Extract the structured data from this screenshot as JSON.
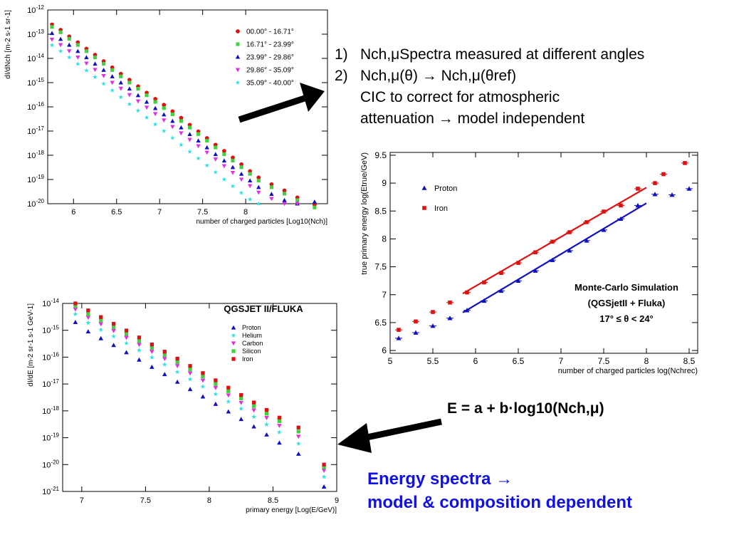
{
  "bullets": {
    "item1_num": "1)",
    "item1_text": "Nch,μSpectra measured at different angles",
    "item2_num": "2)",
    "item2_line1": "Nch,μ(θ) → Nch,μ(θref)",
    "item2_line2": "CIC to correct for atmospheric",
    "item2_line3": "attenuation → model independent"
  },
  "formula": "E = a + b·log10(Nch,μ)",
  "energy_spectra": {
    "line1": "Energy spectra →",
    "line2": "model & composition dependent"
  },
  "colors": {
    "red": "#e01010",
    "green": "#40d040",
    "blue": "#1010c0",
    "magenta": "#e030e0",
    "cyan": "#30e0e0",
    "accent_text": "#1010e8",
    "arrow": "#000000"
  },
  "chart_data": [
    {
      "type": "scatter",
      "title": "",
      "xlabel": "number of charged particles [Log10(Nch)]",
      "ylabel": "dI/dNch [m-2 s-1 sr-1]",
      "xlim": [
        5.7,
        8.95
      ],
      "ylim": [
        1e-20,
        1e-12
      ],
      "log_y": true,
      "x_ticks": [
        6,
        6.5,
        7,
        7.5,
        8
      ],
      "y_ticks": [
        "10-12",
        "10-13",
        "10-14",
        "10-15",
        "10-16",
        "10-17",
        "10-18",
        "10-19",
        "10-20"
      ],
      "legend_position": "top-right",
      "x": [
        5.75,
        5.85,
        5.95,
        6.05,
        6.15,
        6.25,
        6.35,
        6.45,
        6.55,
        6.65,
        6.75,
        6.85,
        6.95,
        7.05,
        7.15,
        7.25,
        7.35,
        7.45,
        7.55,
        7.65,
        7.75,
        7.85,
        7.95,
        8.05,
        8.15,
        8.3,
        8.45,
        8.6,
        8.8
      ],
      "series": [
        {
          "name": "00.00° - 16.71°",
          "marker": "circle",
          "color": "#e01010",
          "y": [
            2.5e-13,
            1.5e-13,
            8e-14,
            4.6e-14,
            2.5e-14,
            1.4e-14,
            7.6e-15,
            4.2e-15,
            2.3e-15,
            1.3e-15,
            7e-16,
            3.8e-16,
            2.1e-16,
            1.2e-16,
            6.5e-17,
            3.5e-17,
            1.8e-17,
            9.6e-18,
            5.1e-18,
            2.7e-18,
            1.5e-18,
            8e-19,
            4.2e-19,
            2.2e-19,
            1.2e-19,
            6.3e-20,
            3.5e-20,
            1.8e-20,
            9e-21
          ]
        },
        {
          "name": "16.71° - 23.99°",
          "marker": "square",
          "color": "#40d040",
          "y": [
            2e-13,
            1.2e-13,
            6.5e-14,
            3.6e-14,
            2e-14,
            1.1e-14,
            6e-15,
            3.3e-15,
            1.8e-15,
            1e-15,
            5.6e-16,
            3e-16,
            1.6e-16,
            8.9e-17,
            4.9e-17,
            2.6e-17,
            1.4e-17,
            7.5e-18,
            4e-18,
            2.1e-18,
            1.1e-18,
            6e-19,
            3.2e-19,
            1.7e-19,
            9e-20,
            4.8e-20,
            2.6e-20,
            1.4e-20,
            7e-21
          ]
        },
        {
          "name": "23.99° - 29.86°",
          "marker": "triangle",
          "color": "#1010c0",
          "y": [
            1.1e-13,
            6.3e-14,
            3.6e-14,
            2e-14,
            1.1e-14,
            6e-15,
            3.3e-15,
            1.8e-15,
            1e-15,
            5.6e-16,
            3e-16,
            1.6e-16,
            8.8e-17,
            4.8e-17,
            2.6e-17,
            1.4e-17,
            7.4e-18,
            4e-18,
            2.1e-18,
            1.1e-18,
            6e-19,
            3.2e-19,
            1.7e-19,
            9e-20,
            4.8e-20,
            2.5e-20,
            1.4e-20,
            1e-20,
            1.2e-20
          ]
        },
        {
          "name": "29.86° - 35.09°",
          "marker": "triangle-down",
          "color": "#e030e0",
          "y": [
            6e-14,
            3.6e-14,
            2e-14,
            1.1e-14,
            6.2e-15,
            3.4e-15,
            1.9e-15,
            1e-15,
            5.7e-16,
            3.1e-16,
            1.7e-16,
            9.4e-17,
            5.1e-17,
            2.8e-17,
            1.5e-17,
            8.2e-18,
            4.4e-18,
            2.4e-18,
            1.3e-18,
            6.8e-19,
            3.6e-19,
            1.9e-19,
            1e-19,
            5.4e-20,
            2.9e-20,
            1.6e-20,
            1e-20,
            1e-20
          ]
        },
        {
          "name": "35.09° - 40.00°",
          "marker": "star",
          "color": "#30e0e0",
          "y": [
            3.5e-14,
            2e-14,
            1.1e-14,
            5.9e-15,
            3.2e-15,
            1.7e-15,
            9e-16,
            4.8e-16,
            2.5e-16,
            1.3e-16,
            7e-17,
            3.6e-17,
            1.9e-17,
            1e-17,
            5.2e-18,
            2.7e-18,
            1.4e-18,
            7.5e-19,
            3.8e-19,
            2e-19,
            1e-19,
            5.3e-20,
            2.8e-20,
            1.5e-20,
            1e-20
          ]
        }
      ]
    },
    {
      "type": "scatter",
      "title": "Monte-Carlo Simulation",
      "annotation": [
        "Monte-Carlo Simulation",
        "(QGSjetII + Fluka)",
        "17° ≤ θ < 24°"
      ],
      "xlabel": "number of charged particles log(Nchrec)",
      "ylabel": "true primary energy log(Etrue/GeV)",
      "xlim": [
        5,
        8.6
      ],
      "ylim": [
        5.95,
        9.55
      ],
      "x_ticks": [
        5,
        5.5,
        6,
        6.5,
        7,
        7.5,
        8,
        8.5
      ],
      "y_ticks": [
        6,
        6.5,
        7,
        7.5,
        8,
        8.5,
        9,
        9.5
      ],
      "legend_position": "top-left",
      "series": [
        {
          "name": "Proton",
          "marker": "triangle",
          "color": "#1010c0",
          "x": [
            5.1,
            5.3,
            5.5,
            5.7,
            5.9,
            6.1,
            6.3,
            6.5,
            6.7,
            6.9,
            7.1,
            7.3,
            7.5,
            7.7,
            7.9,
            8.1,
            8.3,
            8.5
          ],
          "y": [
            6.22,
            6.32,
            6.44,
            6.58,
            6.72,
            6.89,
            7.07,
            7.25,
            7.43,
            7.62,
            7.79,
            7.97,
            8.16,
            8.36,
            8.6,
            8.8,
            8.79,
            8.9
          ],
          "fit": {
            "x": [
              5.85,
              8.0
            ],
            "y": [
              6.68,
              8.64
            ]
          }
        },
        {
          "name": "Iron",
          "marker": "square",
          "color": "#e01010",
          "x": [
            5.1,
            5.3,
            5.5,
            5.7,
            5.9,
            6.1,
            6.3,
            6.5,
            6.7,
            6.9,
            7.1,
            7.3,
            7.5,
            7.7,
            7.9,
            8.1,
            8.2,
            8.45
          ],
          "y": [
            6.37,
            6.52,
            6.69,
            6.86,
            7.04,
            7.22,
            7.39,
            7.57,
            7.76,
            7.95,
            8.12,
            8.3,
            8.49,
            8.6,
            8.9,
            9.0,
            9.16,
            9.36
          ],
          "fit": {
            "x": [
              5.85,
              8.0
            ],
            "y": [
              7.02,
              8.92
            ]
          }
        }
      ]
    },
    {
      "type": "scatter",
      "title": "QGSJET II/FLUKA",
      "xlabel": "primary energy [Log(E/GeV)]",
      "ylabel": "dI/dE [m-2 sr-1 s-1 GeV-1]",
      "xlim": [
        6.85,
        9
      ],
      "ylim": [
        1e-21,
        1e-14
      ],
      "log_y": true,
      "x_ticks": [
        7,
        7.5,
        8,
        8.5,
        9
      ],
      "y_ticks": [
        "10-14",
        "10-15",
        "10-16",
        "10-17",
        "10-18",
        "10-19",
        "10-20",
        "10-21"
      ],
      "legend_position": "top-center",
      "x": [
        6.95,
        7.05,
        7.15,
        7.25,
        7.35,
        7.45,
        7.55,
        7.65,
        7.75,
        7.85,
        7.95,
        8.05,
        8.15,
        8.25,
        8.35,
        8.45,
        8.55,
        8.7,
        8.9
      ],
      "series": [
        {
          "name": "Proton",
          "marker": "triangle",
          "color": "#1010c0",
          "y": [
            2e-15,
            9e-16,
            5e-16,
            2.8e-16,
            1.5e-16,
            8e-17,
            4.3e-17,
            2.3e-17,
            1.2e-17,
            6.4e-18,
            3.4e-18,
            1.8e-18,
            9.4e-19,
            4.9e-19,
            2.6e-19,
            1.3e-19,
            6.5e-20,
            2.5e-20,
            1.5e-21
          ]
        },
        {
          "name": "Helium",
          "marker": "star",
          "color": "#30e0e0",
          "y": [
            4e-15,
            1.9e-15,
            1.05e-15,
            5.9e-16,
            3.3e-16,
            1.8e-16,
            9.8e-17,
            5.3e-17,
            2.8e-17,
            1.5e-17,
            8e-18,
            4.2e-18,
            2.2e-18,
            1.2e-18,
            6e-19,
            3.1e-19,
            1.6e-19,
            6e-20,
            3.5e-21
          ]
        },
        {
          "name": "Carbon",
          "marker": "triangle-down",
          "color": "#e030e0",
          "y": [
            6e-15,
            3e-15,
            1.7e-15,
            9.5e-16,
            5.3e-16,
            2.9e-16,
            1.6e-16,
            8.7e-17,
            4.7e-17,
            2.5e-17,
            1.35e-17,
            7.2e-18,
            3.8e-18,
            2e-18,
            1.05e-18,
            5.5e-19,
            2.8e-19,
            1.1e-19,
            6e-21
          ]
        },
        {
          "name": "Silicon",
          "marker": "square",
          "color": "#40d040",
          "y": [
            8e-15,
            4e-15,
            2.3e-15,
            1.3e-15,
            7.3e-16,
            4e-16,
            2.2e-16,
            1.2e-16,
            6.5e-17,
            3.5e-17,
            1.9e-17,
            1e-17,
            5.4e-18,
            2.9e-18,
            1.5e-18,
            7.9e-19,
            4.1e-19,
            1.7e-19,
            8e-21
          ]
        },
        {
          "name": "Iron",
          "marker": "square",
          "color": "#e01010",
          "y": [
            1e-14,
            5.5e-15,
            3.1e-15,
            1.75e-15,
            9.8e-16,
            5.4e-16,
            2.96e-16,
            1.6e-16,
            8.8e-17,
            4.7e-17,
            2.55e-17,
            1.37e-17,
            7.3e-18,
            3.9e-18,
            2.05e-18,
            1.08e-18,
            5.6e-19,
            2.4e-19,
            1e-20
          ]
        }
      ]
    }
  ]
}
